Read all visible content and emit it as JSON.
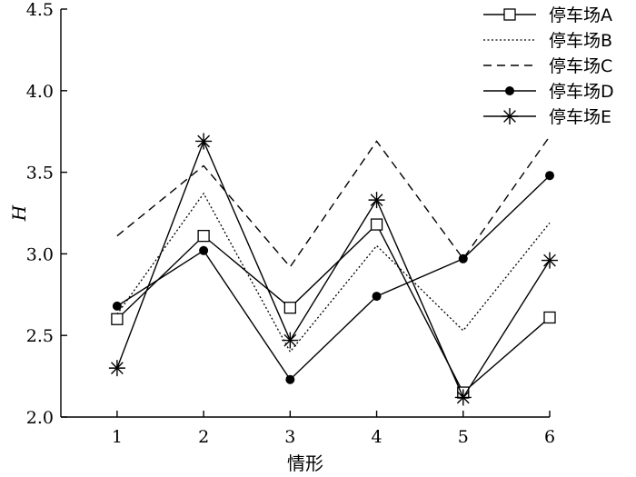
{
  "chart_data": {
    "type": "line",
    "title": "",
    "xlabel": "情形",
    "ylabel": "H",
    "categories": [
      "1",
      "2",
      "3",
      "4",
      "5",
      "6"
    ],
    "xlim": [
      0.35,
      6.0
    ],
    "ylim": [
      2.0,
      4.5
    ],
    "y_ticks": [
      "2.0",
      "2.5",
      "3.0",
      "3.5",
      "4.0",
      "4.5"
    ],
    "grid": false,
    "legend_position": "top-right",
    "series": [
      {
        "name": "停车场A",
        "line_style": "solid",
        "marker": "open-square",
        "values": [
          2.6,
          3.11,
          2.67,
          3.18,
          2.15,
          2.61
        ]
      },
      {
        "name": "停车场B",
        "line_style": "dotted",
        "marker": "none",
        "values": [
          2.63,
          3.37,
          2.4,
          3.05,
          2.53,
          3.19
        ]
      },
      {
        "name": "停车场C",
        "line_style": "dashed",
        "marker": "none",
        "values": [
          3.11,
          3.54,
          2.92,
          3.69,
          2.97,
          3.72
        ]
      },
      {
        "name": "停车场D",
        "line_style": "solid",
        "marker": "filled-circle",
        "values": [
          2.68,
          3.02,
          2.23,
          2.74,
          2.97,
          3.48
        ]
      },
      {
        "name": "停车场E",
        "line_style": "solid",
        "marker": "asterisk",
        "values": [
          2.3,
          3.69,
          2.47,
          3.33,
          2.12,
          2.96
        ]
      }
    ]
  }
}
